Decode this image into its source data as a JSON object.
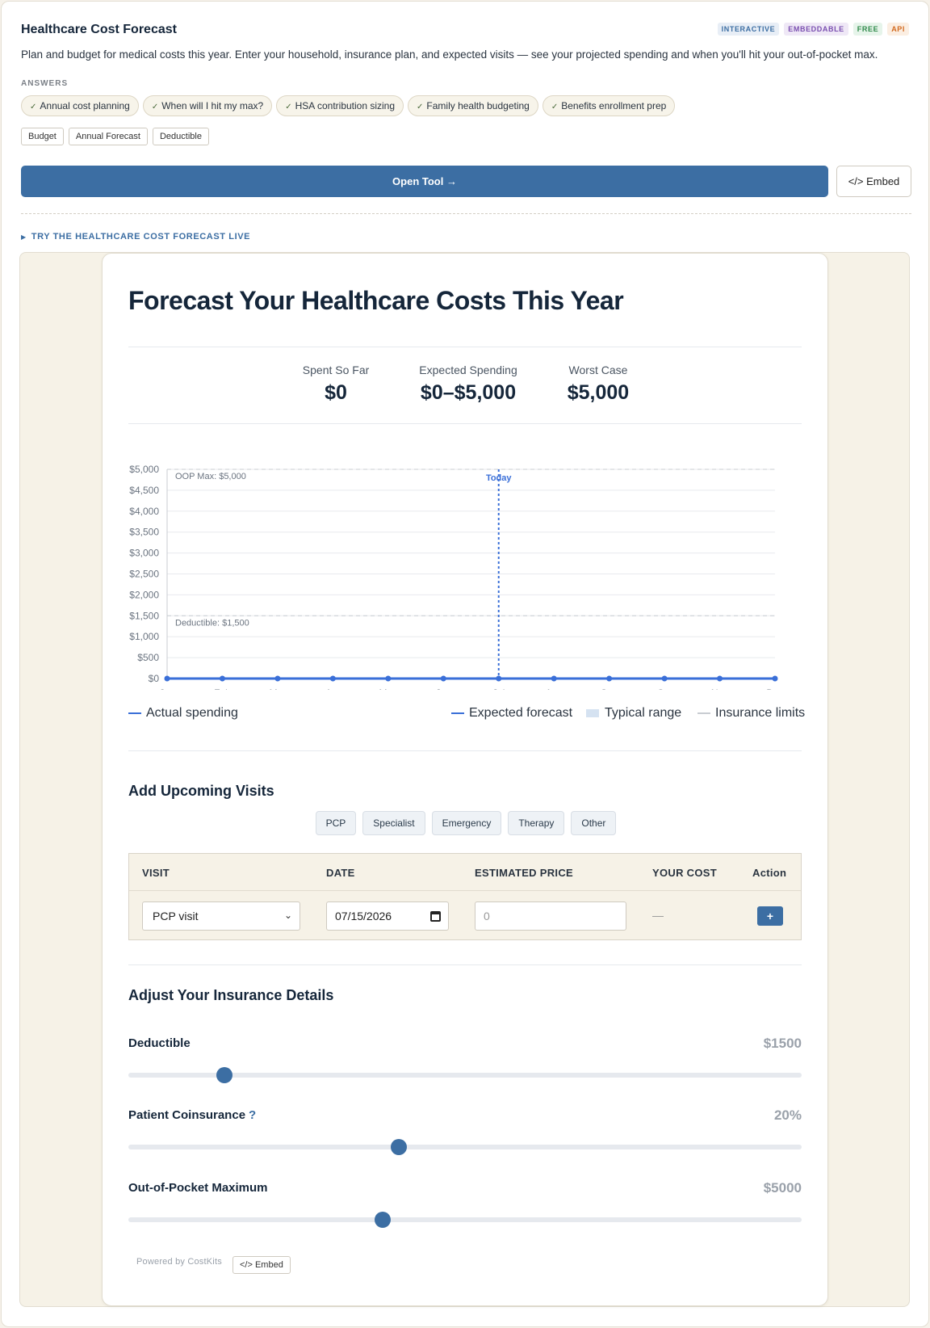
{
  "header": {
    "title": "Healthcare Cost Forecast",
    "description": "Plan and budget for medical costs this year. Enter your household, insurance plan, and expected visits — see your projected spending and when you'll hit your out-of-pocket max.",
    "badges": [
      {
        "label": "INTERACTIVE",
        "color": "#3c6ea3",
        "bg": "#e8eef6"
      },
      {
        "label": "EMBEDDABLE",
        "color": "#7a4fb0",
        "bg": "#efe8f6"
      },
      {
        "label": "FREE",
        "color": "#2f8a4a",
        "bg": "#e6f4ea"
      },
      {
        "label": "API",
        "color": "#d2691e",
        "bg": "#fbeee2"
      }
    ]
  },
  "answers": {
    "label": "ANSWERS",
    "items": [
      "Annual cost planning",
      "When will I hit my max?",
      "HSA contribution sizing",
      "Family health budgeting",
      "Benefits enrollment prep"
    ]
  },
  "tags": [
    "Budget",
    "Annual Forecast",
    "Deductible"
  ],
  "actions": {
    "open_tool": "Open Tool →",
    "embed": "</> Embed"
  },
  "try_live": "TRY THE HEALTHCARE COST FORECAST LIVE",
  "widget": {
    "title": "Forecast Your Healthcare Costs This Year",
    "stats": [
      {
        "label": "Spent So Far",
        "value": "$0"
      },
      {
        "label": "Expected Spending",
        "value": "$0–$5,000"
      },
      {
        "label": "Worst Case",
        "value": "$5,000"
      }
    ],
    "legend": {
      "actual": "Actual spending",
      "expected": "Expected forecast",
      "range": "Typical range",
      "limits": "Insurance limits"
    },
    "visits_title": "Add Upcoming Visits",
    "visit_types": [
      "PCP",
      "Specialist",
      "Emergency",
      "Therapy",
      "Other"
    ],
    "table": {
      "headers": [
        "VISIT",
        "DATE",
        "ESTIMATED PRICE",
        "YOUR COST",
        "Action"
      ],
      "row": {
        "visit": "PCP visit",
        "date": "07/15/2026",
        "price_placeholder": "0",
        "cost": "—",
        "action": "+"
      }
    },
    "insurance_title": "Adjust Your Insurance Details",
    "sliders": [
      {
        "label": "Deductible",
        "value": "$1500",
        "help": "",
        "fraction": 0.143
      },
      {
        "label": "Patient Coinsurance",
        "value": "20%",
        "help": "?",
        "fraction": 0.402
      },
      {
        "label": "Out-of-Pocket Maximum",
        "value": "$5000",
        "help": "",
        "fraction": 0.378
      }
    ],
    "powered_by": "Powered by CostKits",
    "embed_small": "</> Embed"
  },
  "chart_data": {
    "type": "line",
    "categories": [
      "Jan",
      "Feb",
      "Mar",
      "Apr",
      "May",
      "Jun",
      "Jul",
      "Aug",
      "Sep",
      "Oct",
      "Nov",
      "Dec"
    ],
    "series": [
      {
        "name": "Actual spending",
        "values": [
          0,
          0,
          0,
          0,
          0,
          0,
          0,
          0,
          0,
          0,
          0,
          0
        ],
        "color": "#3a6fd8"
      }
    ],
    "y_ticks": [
      "$0",
      "$500",
      "$1,000",
      "$1,500",
      "$2,000",
      "$2,500",
      "$3,000",
      "$3,500",
      "$4,000",
      "$4,500",
      "$5,000"
    ],
    "ylim": [
      0,
      5000
    ],
    "reference_lines": [
      {
        "label": "OOP Max: $5,000",
        "value": 5000
      },
      {
        "label": "Deductible: $1,500",
        "value": 1500
      }
    ],
    "today_marker": {
      "label": "Today",
      "category": "Jul"
    },
    "grid": true,
    "legend_position": "bottom"
  }
}
